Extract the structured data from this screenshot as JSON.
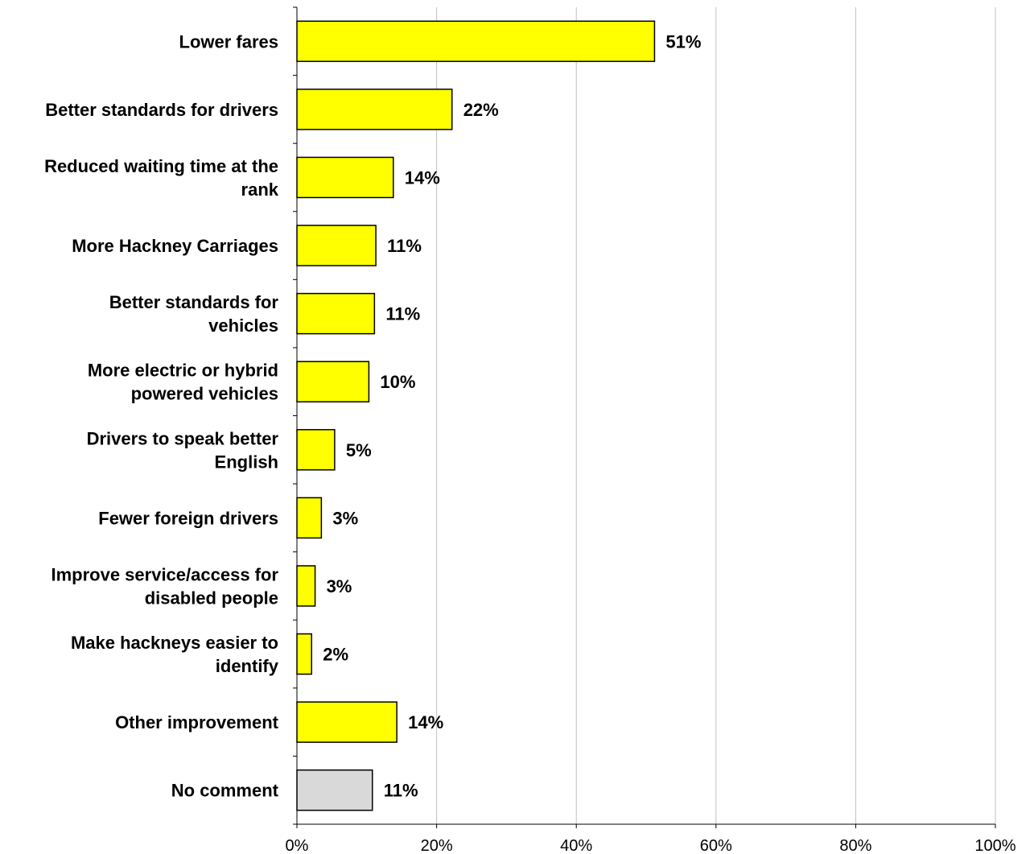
{
  "chart_data": {
    "type": "bar",
    "orientation": "horizontal",
    "categories": [
      [
        "Lower fares"
      ],
      [
        "Better standards for drivers"
      ],
      [
        "Reduced waiting time at the",
        "rank"
      ],
      [
        "More Hackney Carriages"
      ],
      [
        "Better standards for",
        "vehicles"
      ],
      [
        "More electric or hybrid",
        "powered vehicles"
      ],
      [
        "Drivers to speak better",
        "English"
      ],
      [
        "Fewer foreign drivers"
      ],
      [
        "Improve service/access for",
        "disabled people"
      ],
      [
        "Make hackneys easier to",
        "identify"
      ],
      [
        "Other improvement"
      ],
      [
        "No comment"
      ]
    ],
    "values": [
      51,
      22,
      14,
      11,
      11,
      10,
      5,
      3,
      3,
      2,
      14,
      11
    ],
    "bar_lengths": [
      51.2,
      22.2,
      13.8,
      11.3,
      11.1,
      10.3,
      5.4,
      3.5,
      2.6,
      2.1,
      14.3,
      10.8
    ],
    "value_labels": [
      "51%",
      "22%",
      "14%",
      "11%",
      "11%",
      "10%",
      "5%",
      "3%",
      "3%",
      "2%",
      "14%",
      "11%"
    ],
    "bar_colors": [
      "#ffff00",
      "#ffff00",
      "#ffff00",
      "#ffff00",
      "#ffff00",
      "#ffff00",
      "#ffff00",
      "#ffff00",
      "#ffff00",
      "#ffff00",
      "#ffff00",
      "#d9d9d9"
    ],
    "xlim": [
      0,
      100
    ],
    "xticks": [
      0,
      20,
      40,
      60,
      80,
      100
    ],
    "xtick_labels": [
      "0%",
      "20%",
      "40%",
      "60%",
      "80%",
      "100%"
    ],
    "grid": "vertical",
    "grid_color": "#c0c0c0",
    "title": "",
    "xlabel": "",
    "ylabel": ""
  }
}
